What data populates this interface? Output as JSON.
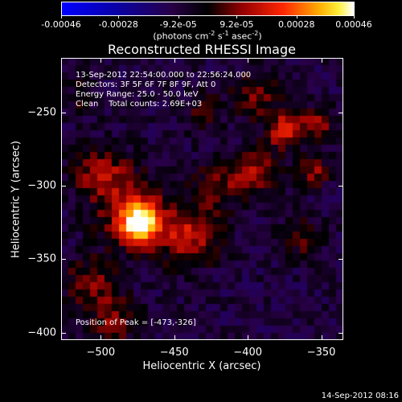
{
  "colorbar": {
    "tick_labels": [
      "-0.00046",
      "-0.00028",
      "-9.2e-05",
      "9.2e-05",
      "0.00028",
      "0.00046"
    ],
    "tick_values": [
      -0.00046,
      -0.00028,
      -9.2e-05,
      9.2e-05,
      0.00028,
      0.00046
    ],
    "range": [
      -0.00046,
      0.00046
    ],
    "units_prefix": "(photons cm",
    "units_exp1": "-2",
    "units_mid1": " s",
    "units_exp2": "-1",
    "units_mid2": " asec",
    "units_exp3": "-2",
    "units_suffix": ")",
    "colormap": "blue-black-red-yellow-white"
  },
  "chart_data": {
    "type": "heatmap",
    "title": "Reconstructed RHESSI Image",
    "xlabel": "Heliocentric X (arcsec)",
    "ylabel": "Heliocentric Y (arcsec)",
    "xlim": [
      -527,
      -335
    ],
    "ylim": [
      -405,
      -213
    ],
    "x_ticks": [
      -500,
      -450,
      -400,
      -350
    ],
    "y_ticks": [
      -250,
      -300,
      -350,
      -400
    ],
    "x_tick_labels": [
      "−500",
      "−450",
      "−400",
      "−350"
    ],
    "y_tick_labels": [
      "−250",
      "−300",
      "−350",
      "−400"
    ],
    "peak_position": [
      -473,
      -326
    ],
    "peak_value": 0.00046,
    "background_value": -9e-05,
    "features": [
      {
        "x": -473,
        "y": -326,
        "amplitude": 0.00046,
        "sigma": 9
      },
      {
        "x": -478,
        "y": -318,
        "amplitude": 0.00022,
        "sigma": 17
      },
      {
        "x": -440,
        "y": -334,
        "amplitude": 0.00024,
        "sigma": 14
      },
      {
        "x": -500,
        "y": -292,
        "amplitude": 0.0002,
        "sigma": 13
      },
      {
        "x": -507,
        "y": -368,
        "amplitude": 0.00018,
        "sigma": 13
      },
      {
        "x": -490,
        "y": -392,
        "amplitude": 0.00016,
        "sigma": 11
      },
      {
        "x": -420,
        "y": -300,
        "amplitude": 0.00015,
        "sigma": 12
      },
      {
        "x": -395,
        "y": -290,
        "amplitude": 0.00019,
        "sigma": 11
      },
      {
        "x": -375,
        "y": -262,
        "amplitude": 0.00026,
        "sigma": 9
      },
      {
        "x": -395,
        "y": -238,
        "amplitude": 0.00016,
        "sigma": 11
      },
      {
        "x": -355,
        "y": -290,
        "amplitude": 0.00018,
        "sigma": 8
      },
      {
        "x": -352,
        "y": -258,
        "amplitude": 0.0002,
        "sigma": 8
      },
      {
        "x": -362,
        "y": -335,
        "amplitude": 0.00014,
        "sigma": 10
      },
      {
        "x": -430,
        "y": -250,
        "amplitude": 0.0001,
        "sigma": 10
      },
      {
        "x": -515,
        "y": -240,
        "amplitude": 8e-05,
        "sigma": 10
      }
    ]
  },
  "annotations": {
    "line1": "13-Sep-2012 22:54:00.000 to 22:56:24.000",
    "line2": "Detectors: 3F 5F 6F 7F 8F 9F, Att 0",
    "line3": "Energy Range: 25.0 - 50.0 keV",
    "line4": "Clean    Total counts: 2.69E+03",
    "peak": "Position of Peak = [-473,-326]"
  },
  "footer": "14-Sep-2012 08:16"
}
